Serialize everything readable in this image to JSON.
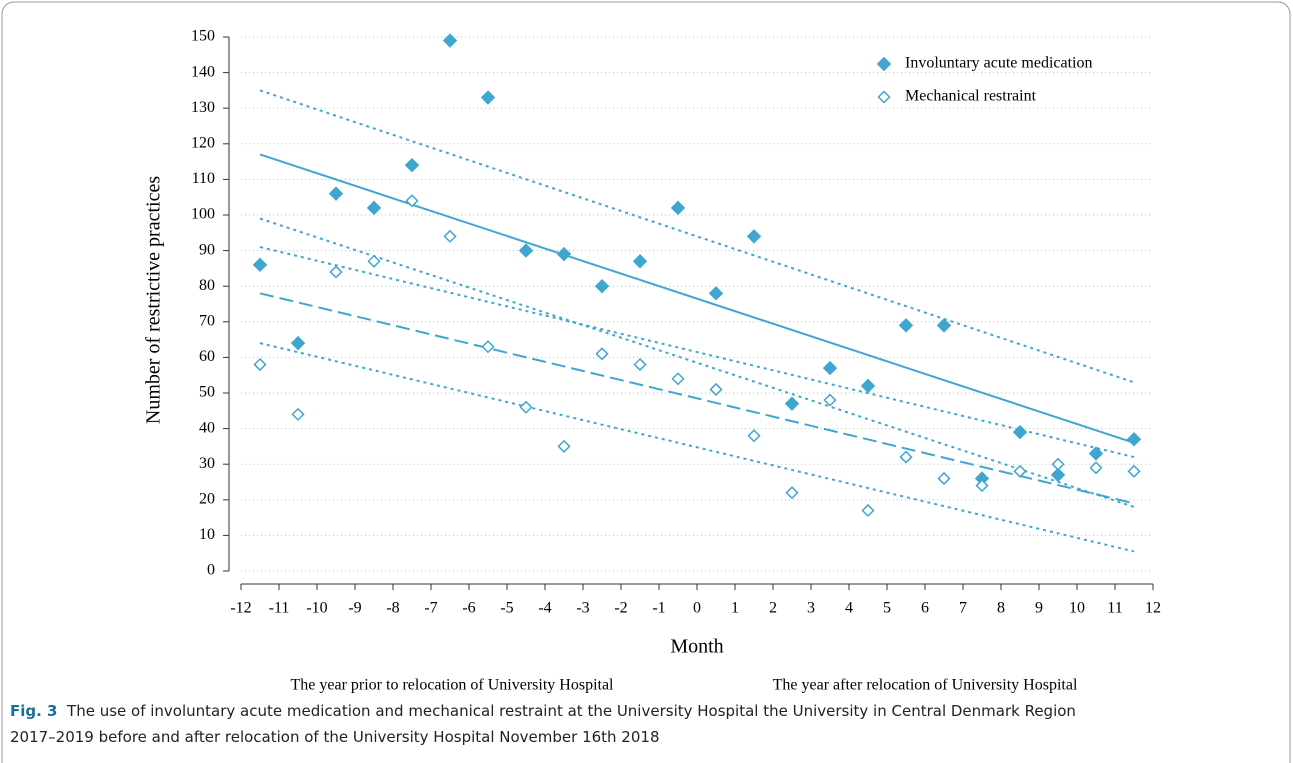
{
  "chart_data": {
    "type": "scatter",
    "x_label": "Month",
    "y_label": "Number of restrictive practices",
    "xlim": [
      -12,
      12
    ],
    "xticks": [
      -12,
      -11,
      -10,
      -9,
      -8,
      -7,
      -6,
      -5,
      -4,
      -3,
      -2,
      -1,
      0,
      1,
      2,
      3,
      4,
      5,
      6,
      7,
      8,
      9,
      10,
      11,
      12
    ],
    "ylim": [
      0,
      150
    ],
    "yticks": [
      0,
      10,
      20,
      30,
      40,
      50,
      60,
      70,
      80,
      90,
      100,
      110,
      120,
      130,
      140,
      150
    ],
    "grid": true,
    "legend": "upper right",
    "x": [
      -11.5,
      -10.5,
      -9.5,
      -8.5,
      -7.5,
      -6.5,
      -5.5,
      -4.5,
      -3.5,
      -2.5,
      -1.5,
      -0.5,
      0.5,
      1.5,
      2.5,
      3.5,
      4.5,
      5.5,
      6.5,
      7.5,
      8.5,
      9.5,
      10.5,
      11.5
    ],
    "series": [
      {
        "name": "Involuntary acute medication",
        "color": "#3fa7cf",
        "marker": "filled",
        "values": [
          86,
          64,
          106,
          102,
          114,
          149,
          133,
          90,
          89,
          80,
          87,
          102,
          78,
          94,
          47,
          57,
          52,
          69,
          69,
          26,
          39,
          27,
          33,
          37
        ]
      },
      {
        "name": "Mechanical restraint",
        "color": "#3fa7cf",
        "marker": "open",
        "values": [
          58,
          44,
          84,
          87,
          104,
          94,
          63,
          46,
          35,
          61,
          58,
          54,
          51,
          38,
          22,
          48,
          17,
          32,
          26,
          24,
          28,
          30,
          29,
          28
        ]
      }
    ],
    "fit_lines": [
      {
        "x": [
          -11.5,
          11.5
        ],
        "values": [
          117,
          36
        ],
        "style": "solid"
      },
      {
        "x": [
          -11.5,
          11.5
        ],
        "values": [
          135,
          53
        ],
        "style": "dotted"
      },
      {
        "x": [
          -11.5,
          11.5
        ],
        "values": [
          99,
          18
        ],
        "style": "dotted"
      },
      {
        "x": [
          -11.5,
          11.5
        ],
        "values": [
          78,
          19
        ],
        "style": "dashed"
      },
      {
        "x": [
          -11.5,
          11.5
        ],
        "values": [
          91,
          32
        ],
        "style": "dotted"
      },
      {
        "x": [
          -11.5,
          11.5
        ],
        "values": [
          64,
          5.5
        ],
        "style": "dotted"
      }
    ],
    "annotations": [
      "The year prior to relocation of University Hospital",
      "The year after relocation of University Hospital"
    ]
  },
  "caption": {
    "label": "Fig. 3",
    "lines": [
      "The use of involuntary acute medication and mechanical restraint at the University Hospital the University in Central Denmark Region",
      "2017–2019 before and after relocation of the University Hospital November 16th 2018"
    ]
  }
}
